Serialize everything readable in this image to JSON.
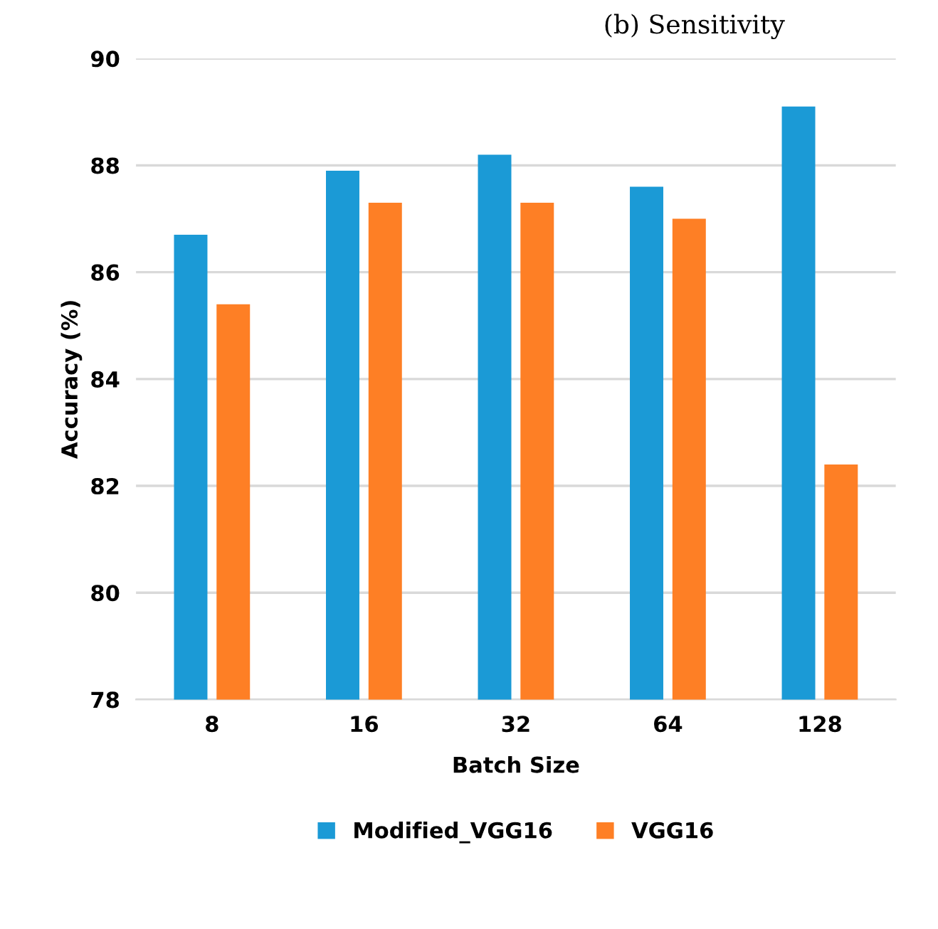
{
  "chart_data": {
    "type": "bar",
    "categories": [
      "8",
      "16",
      "32",
      "64",
      "128"
    ],
    "series": [
      {
        "name": "Modified_VGG16",
        "color": "#1b9ad6",
        "values": [
          86.7,
          87.9,
          88.2,
          87.6,
          89.1
        ]
      },
      {
        "name": "VGG16",
        "color": "#fe7f25",
        "values": [
          85.4,
          87.3,
          87.3,
          87.0,
          82.4
        ]
      }
    ],
    "xlabel": "Batch Size",
    "ylabel": "Accuracy (%)",
    "ylim": [
      78,
      90
    ],
    "yticks": [
      78,
      80,
      82,
      84,
      86,
      88,
      90
    ],
    "grid": "y",
    "legend": "bottom",
    "annotations": [
      "(b) Sensitivity"
    ]
  }
}
